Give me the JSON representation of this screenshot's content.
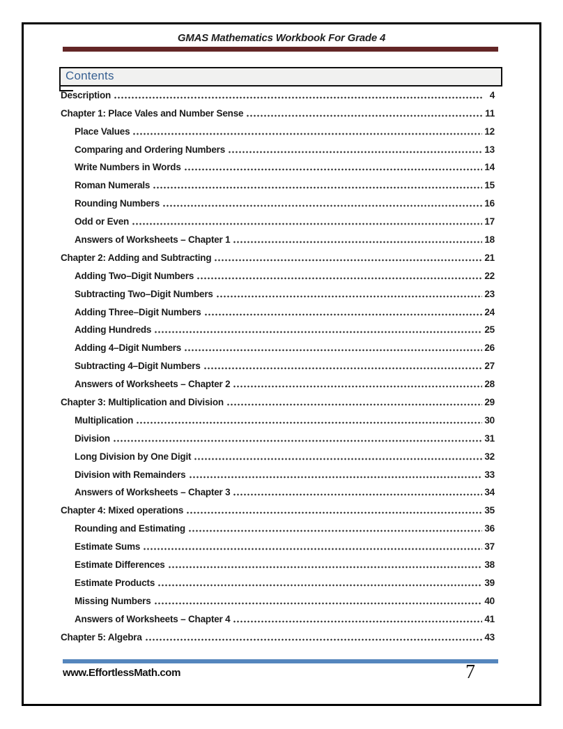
{
  "header": {
    "title": "GMAS Mathematics Workbook For Grade 4"
  },
  "contents": {
    "heading": "Contents",
    "entries": [
      {
        "label": "Description",
        "page": "4",
        "level": 1
      },
      {
        "label": "Chapter 1: Place Vales and Number Sense",
        "page": "11",
        "level": 1
      },
      {
        "label": "Place Values",
        "page": "12",
        "level": 2
      },
      {
        "label": "Comparing and Ordering Numbers",
        "page": "13",
        "level": 2
      },
      {
        "label": "Write Numbers in Words",
        "page": "14",
        "level": 2
      },
      {
        "label": "Roman Numerals",
        "page": "15",
        "level": 2
      },
      {
        "label": "Rounding Numbers",
        "page": "16",
        "level": 2
      },
      {
        "label": "Odd or Even",
        "page": "17",
        "level": 2
      },
      {
        "label": "Answers of Worksheets – Chapter 1",
        "page": "18",
        "level": 2
      },
      {
        "label": "Chapter 2: Adding and Subtracting",
        "page": "21",
        "level": 1
      },
      {
        "label": "Adding Two–Digit Numbers",
        "page": "22",
        "level": 2
      },
      {
        "label": "Subtracting Two–Digit Numbers",
        "page": "23",
        "level": 2
      },
      {
        "label": "Adding Three–Digit Numbers",
        "page": "24",
        "level": 2
      },
      {
        "label": "Adding Hundreds",
        "page": "25",
        "level": 2
      },
      {
        "label": "Adding 4–Digit Numbers",
        "page": "26",
        "level": 2
      },
      {
        "label": "Subtracting 4–Digit Numbers",
        "page": "27",
        "level": 2
      },
      {
        "label": "Answers of Worksheets – Chapter 2",
        "page": "28",
        "level": 2
      },
      {
        "label": "Chapter 3: Multiplication and Division",
        "page": "29",
        "level": 1
      },
      {
        "label": "Multiplication",
        "page": "30",
        "level": 2
      },
      {
        "label": "Division",
        "page": "31",
        "level": 2
      },
      {
        "label": "Long Division by One Digit",
        "page": "32",
        "level": 2
      },
      {
        "label": "Division with Remainders",
        "page": "33",
        "level": 2
      },
      {
        "label": "Answers of Worksheets – Chapter 3",
        "page": "34",
        "level": 2
      },
      {
        "label": "Chapter 4: Mixed operations",
        "page": "35",
        "level": 1
      },
      {
        "label": "Rounding and Estimating",
        "page": "36",
        "level": 2
      },
      {
        "label": "Estimate Sums",
        "page": "37",
        "level": 2
      },
      {
        "label": "Estimate Differences",
        "page": "38",
        "level": 2
      },
      {
        "label": "Estimate Products",
        "page": "39",
        "level": 2
      },
      {
        "label": "Missing Numbers",
        "page": "40",
        "level": 2
      },
      {
        "label": "Answers of Worksheets – Chapter 4",
        "page": "41",
        "level": 2
      },
      {
        "label": "Chapter 5: Algebra",
        "page": "43",
        "level": 1
      }
    ]
  },
  "footer": {
    "website": "www.EffortlessMath.com",
    "page_number": "7"
  },
  "colors": {
    "header_rule": "#632626",
    "footer_rule": "#5586BD",
    "contents_heading_text": "#365F91",
    "contents_box_background": "#F1F1F0",
    "page_border": "#000000"
  }
}
